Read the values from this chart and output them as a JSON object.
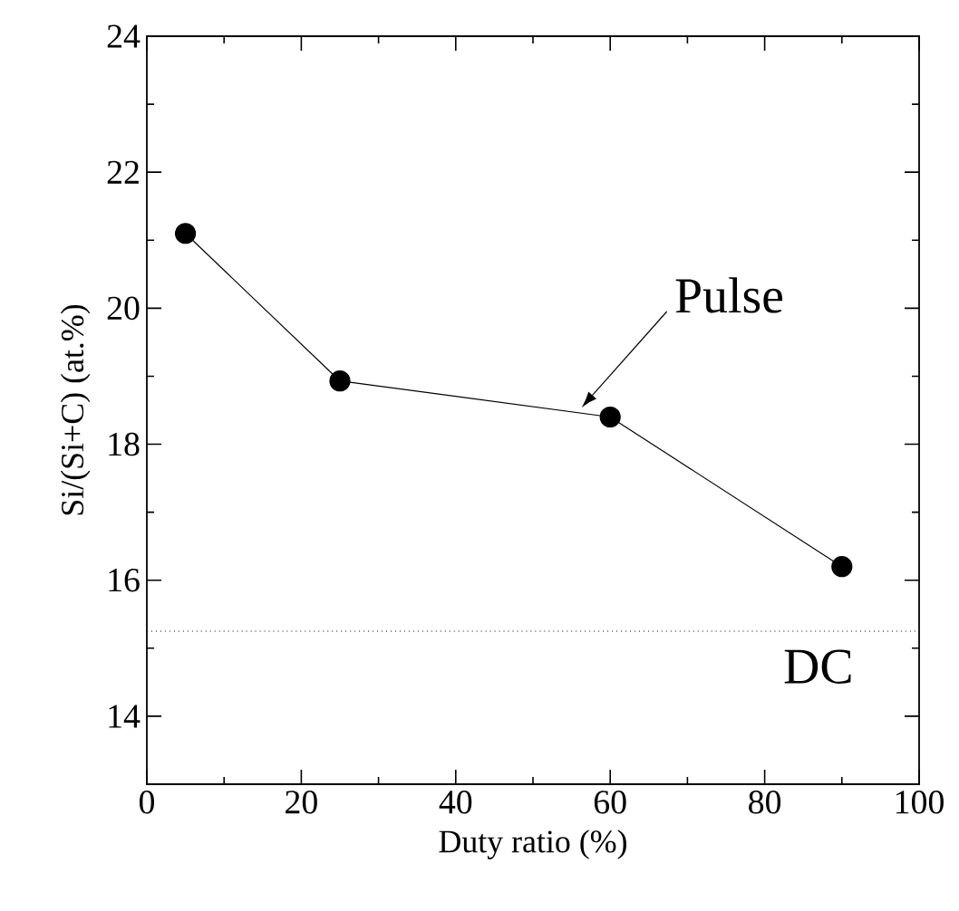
{
  "chart_data": {
    "type": "line",
    "xlabel": "Duty ratio (%)",
    "ylabel": "Si/(Si+C) (at.%)",
    "x": [
      5,
      25,
      60,
      90
    ],
    "series": [
      {
        "color": "#000000",
        "values": [
          21.1,
          18.93,
          18.4,
          16.2
        ]
      }
    ],
    "marker": "circle",
    "line_style": "solid",
    "xlim": [
      0,
      100
    ],
    "xticks": [
      0,
      20,
      40,
      60,
      80,
      100
    ],
    "ylim": [
      13,
      24
    ],
    "yticks": [
      14,
      16,
      18,
      20,
      22,
      24
    ],
    "ref_lines": [
      {
        "axis": "y",
        "value": 15.25,
        "label": "DC",
        "line_style": "dotted",
        "color": "#000000"
      }
    ],
    "annotations": [
      {
        "text": "Pulse",
        "x": 56.3,
        "y": 18.54
      }
    ]
  }
}
